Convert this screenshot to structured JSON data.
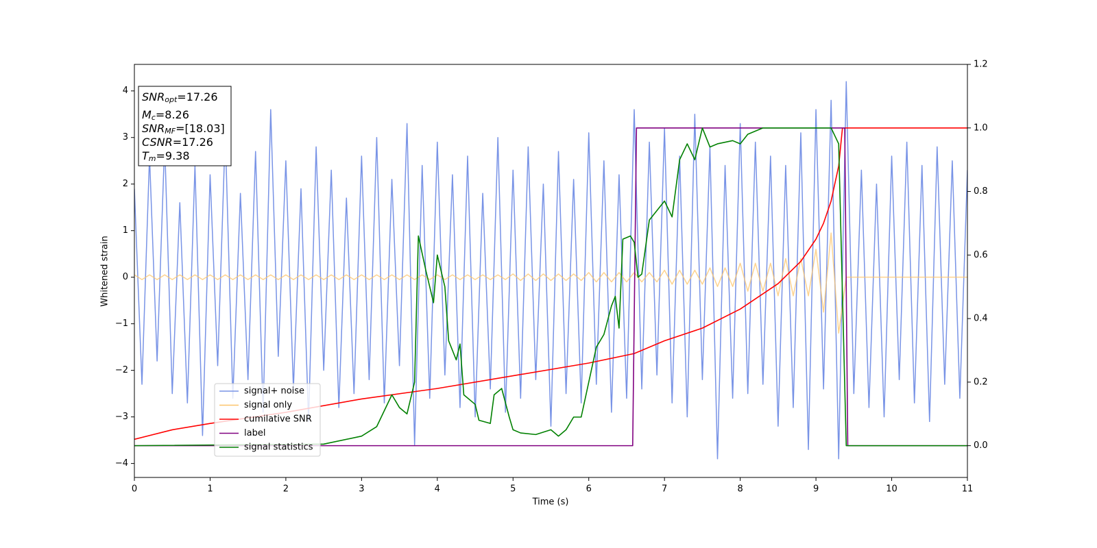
{
  "chart_data": {
    "type": "line",
    "xlabel": "Time (s)",
    "ylabel": "Whitened strain",
    "xlim": [
      0,
      11
    ],
    "xticks": [
      0,
      1,
      2,
      3,
      4,
      5,
      6,
      7,
      8,
      9,
      10,
      11
    ],
    "ylim": [
      -4.3,
      4.57
    ],
    "yticks": [
      {
        "value": -4,
        "label": "−4"
      },
      {
        "value": -3,
        "label": "−3"
      },
      {
        "value": -2,
        "label": "−2"
      },
      {
        "value": -1,
        "label": "−1"
      },
      0,
      1,
      2,
      3,
      4
    ],
    "y2lim": [
      -0.1,
      1.2
    ],
    "y2ticks": [
      {
        "value": 0,
        "label": "0.0"
      },
      0.2,
      0.4,
      0.6,
      0.8,
      {
        "value": 1,
        "label": "1.0"
      },
      1.2
    ],
    "legend": "lower left",
    "annotations": [
      {
        "text": "SNR",
        "sub": "opt",
        "rest": "=17.26"
      },
      {
        "text": "M",
        "sub": "c",
        "rest": "=8.26"
      },
      {
        "text": "SNR",
        "sub": "MF",
        "rest": "=[18.03]"
      },
      {
        "text": "CSNR",
        "rest": "=17.26"
      },
      {
        "text": "T",
        "sub": "m",
        "rest": "=9.38"
      }
    ],
    "series": [
      {
        "name": "signal+ noise",
        "color": "#7893e6",
        "x": [
          0,
          0.1,
          0.2,
          0.3,
          0.4,
          0.5,
          0.6,
          0.7,
          0.8,
          0.9,
          1,
          1.1,
          1.2,
          1.3,
          1.4,
          1.5,
          1.6,
          1.7,
          1.8,
          1.9,
          2,
          2.1,
          2.2,
          2.3,
          2.4,
          2.5,
          2.6,
          2.7,
          2.8,
          2.9,
          3,
          3.1,
          3.2,
          3.3,
          3.4,
          3.5,
          3.6,
          3.7,
          3.8,
          3.9,
          4,
          4.1,
          4.2,
          4.3,
          4.4,
          4.5,
          4.6,
          4.7,
          4.8,
          4.9,
          5,
          5.1,
          5.2,
          5.3,
          5.4,
          5.5,
          5.6,
          5.7,
          5.8,
          5.9,
          6,
          6.1,
          6.2,
          6.3,
          6.4,
          6.5,
          6.6,
          6.7,
          6.8,
          6.9,
          7,
          7.1,
          7.2,
          7.3,
          7.4,
          7.5,
          7.6,
          7.7,
          7.8,
          7.9,
          8,
          8.1,
          8.2,
          8.3,
          8.4,
          8.5,
          8.6,
          8.7,
          8.8,
          8.9,
          9,
          9.1,
          9.2,
          9.3,
          9.4,
          9.5,
          9.6,
          9.7,
          9.8,
          9.9,
          10,
          10.1,
          10.2,
          10.3,
          10.4,
          10.5,
          10.6,
          10.7,
          10.8,
          10.9,
          11
        ],
        "values": [
          1.9,
          -2.3,
          2.6,
          -1.8,
          2.9,
          -2.5,
          1.6,
          -2.7,
          2.4,
          -3.4,
          2.2,
          -1.9,
          3.1,
          -2.6,
          1.8,
          -2.2,
          2.7,
          -2.9,
          3.6,
          -1.7,
          2.5,
          -2.4,
          1.9,
          -3.1,
          2.8,
          -2.0,
          2.3,
          -2.8,
          1.7,
          -2.5,
          2.6,
          -2.2,
          3.0,
          -2.7,
          2.1,
          -1.9,
          3.3,
          -3.6,
          2.4,
          -2.6,
          2.9,
          -2.1,
          2.2,
          -2.8,
          2.6,
          -3.0,
          1.8,
          -2.4,
          3.0,
          -2.9,
          2.3,
          -2.6,
          2.8,
          -2.2,
          2.0,
          -3.2,
          2.7,
          -2.5,
          2.1,
          -2.7,
          3.1,
          -2.3,
          2.5,
          -2.9,
          2.2,
          -2.6,
          3.6,
          -2.4,
          2.9,
          -2.1,
          3.2,
          -2.7,
          2.6,
          -3.0,
          3.5,
          -2.2,
          2.8,
          -3.9,
          2.4,
          -2.6,
          3.3,
          -2.5,
          2.9,
          -2.3,
          2.6,
          -3.2,
          2.4,
          -2.8,
          3.1,
          -3.7,
          3.6,
          -2.4,
          3.8,
          -3.9,
          4.2,
          -2.5,
          2.3,
          -2.8,
          2.0,
          -3.0,
          2.6,
          -2.2,
          2.9,
          -2.7,
          2.4,
          -3.1,
          2.8,
          -2.3,
          2.5,
          -2.6,
          2.3
        ]
      },
      {
        "name": "signal only",
        "color": "#fdc46a",
        "x": [
          0,
          0.1,
          0.2,
          0.3,
          0.4,
          0.5,
          0.6,
          0.7,
          0.8,
          0.9,
          1,
          1.1,
          1.2,
          1.3,
          1.4,
          1.5,
          1.6,
          1.7,
          1.8,
          1.9,
          2,
          2.1,
          2.2,
          2.3,
          2.4,
          2.5,
          2.6,
          2.7,
          2.8,
          2.9,
          3,
          3.1,
          3.2,
          3.3,
          3.4,
          3.5,
          3.6,
          3.7,
          3.8,
          3.9,
          4,
          4.1,
          4.2,
          4.3,
          4.4,
          4.5,
          4.6,
          4.7,
          4.8,
          4.9,
          5,
          5.1,
          5.2,
          5.3,
          5.4,
          5.5,
          5.6,
          5.7,
          5.8,
          5.9,
          6,
          6.1,
          6.2,
          6.3,
          6.4,
          6.5,
          6.6,
          6.7,
          6.8,
          6.9,
          7,
          7.1,
          7.2,
          7.3,
          7.4,
          7.5,
          7.6,
          7.7,
          7.8,
          7.9,
          8,
          8.1,
          8.2,
          8.3,
          8.4,
          8.5,
          8.6,
          8.7,
          8.8,
          8.9,
          9,
          9.1,
          9.2,
          9.3,
          9.4,
          9.5,
          9.6,
          9.7,
          9.8,
          9.9,
          10,
          10.1,
          10.2,
          10.3,
          10.4,
          10.5,
          10.6,
          10.7,
          10.8,
          10.9,
          11
        ],
        "values": [
          0.05,
          -0.05,
          0.05,
          -0.05,
          0.05,
          -0.05,
          0.05,
          -0.05,
          0.05,
          -0.05,
          0.05,
          -0.05,
          0.05,
          -0.05,
          0.05,
          -0.05,
          0.05,
          -0.05,
          0.05,
          -0.05,
          0.05,
          -0.05,
          0.05,
          -0.05,
          0.05,
          -0.05,
          0.05,
          -0.05,
          0.05,
          -0.05,
          0.05,
          -0.05,
          0.05,
          -0.05,
          0.05,
          -0.05,
          0.05,
          -0.05,
          0.05,
          -0.05,
          0.05,
          -0.05,
          0.05,
          -0.05,
          0.05,
          -0.05,
          0.05,
          -0.05,
          0.05,
          -0.05,
          0.07,
          -0.07,
          0.07,
          -0.07,
          0.07,
          -0.07,
          0.07,
          -0.07,
          0.07,
          -0.07,
          0.1,
          -0.1,
          0.1,
          -0.1,
          0.1,
          -0.1,
          0.1,
          -0.1,
          0.1,
          -0.1,
          0.15,
          -0.15,
          0.15,
          -0.15,
          0.15,
          -0.15,
          0.2,
          -0.2,
          0.2,
          -0.2,
          0.3,
          -0.3,
          0.3,
          -0.3,
          0.3,
          -0.4,
          0.4,
          -0.4,
          0.4,
          -0.4,
          0.6,
          -0.75,
          0.95,
          -1.2,
          0,
          0,
          0,
          0,
          0,
          0,
          0,
          0,
          0,
          0,
          0,
          0,
          0,
          0,
          0,
          0,
          0
        ]
      },
      {
        "name": "cumilative SNR",
        "color": "#ff0000",
        "axis": "y2",
        "x": [
          0,
          0.5,
          1,
          2,
          3,
          4,
          5,
          6,
          6.6,
          7,
          7.5,
          8,
          8.5,
          8.8,
          9,
          9.1,
          9.2,
          9.3,
          9.35,
          9.4,
          11
        ],
        "values": [
          0.02,
          0.05,
          0.07,
          0.105,
          0.147,
          0.18,
          0.22,
          0.26,
          0.29,
          0.33,
          0.37,
          0.43,
          0.51,
          0.58,
          0.65,
          0.7,
          0.77,
          0.88,
          1.0,
          1.0,
          1.0
        ]
      },
      {
        "name": "label",
        "color": "#800080",
        "axis": "y2",
        "x": [
          0,
          6.58,
          6.63,
          9.38,
          9.42,
          11
        ],
        "values": [
          0,
          0,
          1,
          1,
          0,
          0
        ]
      },
      {
        "name": "signal statistics",
        "color": "#008000",
        "axis": "y2",
        "x": [
          0,
          2.5,
          3,
          3.2,
          3.4,
          3.5,
          3.6,
          3.7,
          3.75,
          3.85,
          3.95,
          4,
          4.1,
          4.15,
          4.25,
          4.3,
          4.35,
          4.5,
          4.55,
          4.7,
          4.75,
          4.85,
          4.95,
          5,
          5.1,
          5.3,
          5.5,
          5.6,
          5.7,
          5.8,
          5.9,
          6,
          6.1,
          6.2,
          6.3,
          6.35,
          6.4,
          6.45,
          6.55,
          6.6,
          6.65,
          6.7,
          6.8,
          6.9,
          7,
          7.1,
          7.2,
          7.3,
          7.4,
          7.5,
          7.6,
          7.7,
          7.9,
          8,
          8.1,
          8.3,
          9.2,
          9.3,
          9.4,
          11
        ],
        "values": [
          0,
          0.005,
          0.03,
          0.06,
          0.16,
          0.12,
          0.1,
          0.2,
          0.66,
          0.55,
          0.45,
          0.6,
          0.5,
          0.33,
          0.27,
          0.32,
          0.16,
          0.13,
          0.08,
          0.07,
          0.16,
          0.18,
          0.09,
          0.05,
          0.04,
          0.035,
          0.05,
          0.03,
          0.05,
          0.09,
          0.09,
          0.2,
          0.31,
          0.35,
          0.44,
          0.47,
          0.37,
          0.65,
          0.66,
          0.64,
          0.53,
          0.54,
          0.71,
          0.74,
          0.77,
          0.72,
          0.9,
          0.95,
          0.9,
          1.0,
          0.94,
          0.95,
          0.96,
          0.95,
          0.98,
          1.0,
          1.0,
          0.95,
          0,
          0
        ]
      }
    ]
  }
}
